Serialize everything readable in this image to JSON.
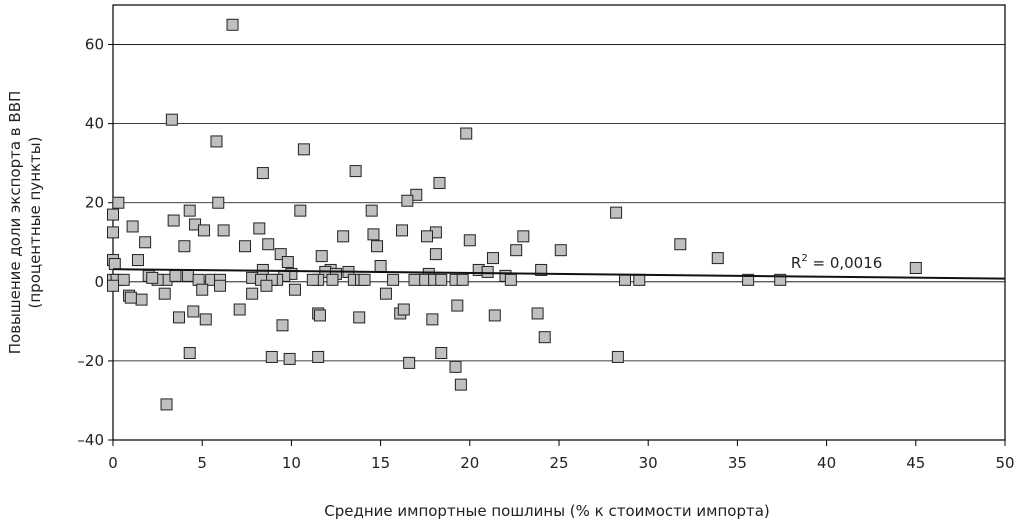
{
  "chart_data": {
    "type": "scatter",
    "xlabel": "Средние импортные пошлины (% к стоимости импорта)",
    "ylabel_line1": "Повышение доли экспорта в ВВП",
    "ylabel_line2": "(процентные пункты)",
    "xlim": [
      0,
      50
    ],
    "ylim": [
      -40,
      70
    ],
    "xticks": [
      0,
      5,
      10,
      15,
      20,
      25,
      30,
      35,
      40,
      45,
      50
    ],
    "yticks": [
      -40,
      -20,
      0,
      20,
      40,
      60
    ],
    "xtick_labels": [
      "0",
      "5",
      "10",
      "15",
      "20",
      "25",
      "30",
      "35",
      "40",
      "45",
      "50"
    ],
    "ytick_labels": [
      "–40",
      "–20",
      "0",
      "20",
      "40",
      "60"
    ],
    "grid": true,
    "marker_color": "#c0c0c0",
    "trendline": {
      "x": [
        0,
        50
      ],
      "y": [
        3.2,
        0.8
      ]
    },
    "r2_label": {
      "prefix": "R",
      "sup": "2",
      "suffix": " = 0,0016",
      "x": 38,
      "y": 3.5
    },
    "points": {
      "x": [
        6.7,
        3.3,
        19.8,
        5.8,
        10.7,
        13.6,
        8.4,
        18.3,
        17.0,
        16.5,
        0.3,
        5.9,
        10.5,
        28.2,
        0.0,
        4.3,
        3.4,
        4.6,
        6.2,
        1.1,
        8.2,
        5.1,
        14.5,
        0.0,
        12.9,
        14.6,
        20.0,
        31.8,
        1.8,
        16.2,
        18.1,
        21.3,
        4.0,
        23.0,
        14.8,
        8.7,
        7.4,
        9.4,
        17.6,
        18.1,
        11.7,
        22.6,
        25.1,
        33.9,
        0.0,
        1.4,
        9.8,
        0.1,
        8.4,
        20.5,
        15.0,
        12.2,
        13.2,
        11.9,
        10.0,
        21.0,
        12.5,
        9.6,
        24.0,
        17.7,
        22.0,
        0.0,
        2.0,
        4.2,
        7.8,
        9.2,
        12.3,
        13.5,
        13.9,
        16.9,
        17.5,
        18.0,
        19.2,
        19.6,
        28.7,
        29.5,
        35.6,
        37.4,
        45.0,
        3.0,
        5.5,
        8.9,
        11.5,
        15.7,
        0.2,
        0.6,
        2.5,
        4.8,
        6.0,
        8.3,
        11.2,
        14.1,
        18.4,
        22.3,
        0.9,
        1.6,
        5.0,
        7.8,
        10.2,
        15.3,
        21.4,
        11.5,
        11.6,
        13.8,
        16.1,
        16.3,
        17.9,
        23.8,
        3.7,
        9.5,
        5.2,
        7.1,
        9.9,
        11.5,
        19.2,
        16.6,
        24.2,
        4.3,
        28.3,
        8.9,
        18.4,
        19.3,
        19.5,
        3.0,
        2.9,
        4.5,
        1.0,
        0.0,
        8.6,
        6.0,
        2.2,
        3.5
      ],
      "y": [
        65.0,
        41.0,
        37.5,
        35.5,
        33.5,
        28.0,
        27.5,
        25.0,
        22.0,
        20.5,
        20.0,
        20.0,
        18.0,
        17.5,
        17.0,
        18.0,
        15.5,
        14.5,
        13.0,
        14.0,
        13.5,
        13.0,
        18.0,
        12.5,
        11.5,
        12.0,
        10.5,
        9.5,
        10.0,
        13.0,
        12.5,
        6.0,
        9.0,
        11.5,
        9.0,
        9.5,
        9.0,
        7.0,
        11.5,
        7.0,
        6.5,
        8.0,
        8.0,
        6.0,
        5.5,
        5.5,
        5.0,
        4.5,
        3.0,
        3.0,
        4.0,
        3.0,
        2.5,
        2.5,
        2.0,
        2.5,
        2.0,
        1.5,
        3.0,
        2.0,
        1.5,
        0.5,
        1.5,
        1.5,
        1.0,
        0.5,
        0.5,
        0.5,
        0.5,
        0.5,
        0.5,
        0.5,
        0.5,
        0.5,
        0.5,
        0.5,
        0.5,
        0.5,
        3.5,
        0.5,
        0.5,
        0.5,
        0.5,
        0.5,
        0.5,
        0.5,
        0.5,
        0.5,
        0.5,
        0.5,
        0.5,
        0.5,
        0.5,
        0.5,
        -3.5,
        -4.5,
        -2.0,
        -3.0,
        -2.0,
        -3.0,
        -8.5,
        -8.0,
        -8.5,
        -9.0,
        -8.0,
        -7.0,
        -9.5,
        -8.0,
        -9.0,
        -11.0,
        -9.5,
        -7.0,
        -19.5,
        -19.0,
        -21.5,
        -20.5,
        -14.0,
        -18.0,
        -19.0,
        -19.0,
        -18.0,
        -6.0,
        -26.0,
        -31.0,
        -3.0,
        -7.5,
        -4.0,
        -1.0,
        -1.0,
        -1.0,
        1.0,
        1.5
      ]
    }
  }
}
